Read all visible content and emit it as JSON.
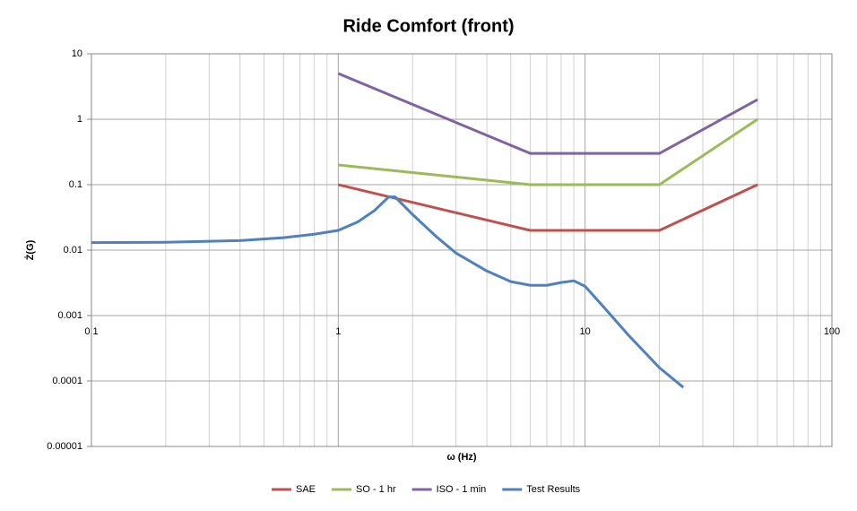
{
  "chart_data": {
    "type": "line",
    "title": "Ride Comfort (front)",
    "x_label": "ω (Hz)",
    "y_label": "Ż(G)",
    "x_scale": "log",
    "y_scale": "log",
    "grid": true,
    "legend": "bottom",
    "xlim": [
      0.1,
      100
    ],
    "xticks": [
      0.1,
      1,
      10,
      100
    ],
    "ylim": [
      1e-05,
      10
    ],
    "yticks": [
      10,
      1,
      0.1,
      0.01,
      0.001,
      0.0001,
      1e-05
    ],
    "series": [
      {
        "name": "SAE",
        "color": "#c0504d",
        "x": [
          1,
          6,
          20,
          50
        ],
        "values": [
          0.1,
          0.02,
          0.02,
          0.1
        ]
      },
      {
        "name": "SO - 1 hr",
        "color": "#9bbb59",
        "x": [
          1,
          6,
          20,
          50
        ],
        "values": [
          0.2,
          0.1,
          0.1,
          1
        ]
      },
      {
        "name": "ISO - 1 min",
        "color": "#8064a2",
        "x": [
          1,
          6,
          20,
          50
        ],
        "values": [
          5,
          0.3,
          0.3,
          2
        ]
      },
      {
        "name": "Test Results",
        "color": "#4f81bd",
        "x": [
          0.1,
          0.2,
          0.4,
          0.6,
          0.8,
          1,
          1.2,
          1.4,
          1.6,
          1.7,
          2,
          2.5,
          3,
          4,
          5,
          6,
          7,
          8,
          9,
          10,
          12,
          15,
          20,
          25
        ],
        "values": [
          0.013,
          0.0132,
          0.014,
          0.0155,
          0.0175,
          0.02,
          0.027,
          0.04,
          0.065,
          0.065,
          0.035,
          0.016,
          0.009,
          0.0048,
          0.0033,
          0.0029,
          0.0029,
          0.0032,
          0.0034,
          0.0028,
          0.0013,
          0.0005,
          0.00016,
          8e-05
        ]
      }
    ]
  }
}
